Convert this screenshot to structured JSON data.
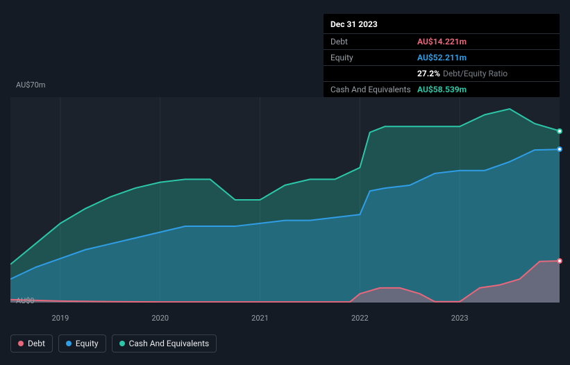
{
  "tooltip": {
    "date": "Dec 31 2023",
    "rows": [
      {
        "label": "Debt",
        "value": "AU$14.221m",
        "color": "#e8677b",
        "extra": null
      },
      {
        "label": "Equity",
        "value": "AU$52.211m",
        "color": "#2f9ee6",
        "extra": null
      },
      {
        "label": "",
        "value": "27.2%",
        "color": "#ffffff",
        "extra": "Debt/Equity Ratio"
      },
      {
        "label": "Cash And Equivalents",
        "value": "AU$58.539m",
        "color": "#2bc7a8",
        "extra": null
      }
    ]
  },
  "chart": {
    "type": "area",
    "background_color": "#1b222c",
    "page_background": "#151b24",
    "grid_color": "#2a2f36",
    "text_color": "#9aa0a6",
    "label_fontsize": 11,
    "y_axis": {
      "min": 0,
      "max": 70,
      "labels": [
        {
          "text": "AU$70m",
          "value": 70
        },
        {
          "text": "AU$0",
          "value": 0
        }
      ]
    },
    "x_axis": {
      "min": 2018.5,
      "max": 2024.0,
      "ticks": [
        2019,
        2020,
        2021,
        2022,
        2023
      ],
      "tick_labels": [
        "2019",
        "2020",
        "2021",
        "2022",
        "2023"
      ]
    },
    "series": [
      {
        "name": "Cash And Equivalents",
        "color": "#2bc7a8",
        "fill_opacity": 0.3,
        "line_width": 2,
        "end_marker": true,
        "data": [
          [
            2018.5,
            13
          ],
          [
            2018.75,
            20
          ],
          [
            2019.0,
            27
          ],
          [
            2019.25,
            32
          ],
          [
            2019.5,
            36
          ],
          [
            2019.75,
            39
          ],
          [
            2020.0,
            41
          ],
          [
            2020.25,
            42
          ],
          [
            2020.5,
            42
          ],
          [
            2020.75,
            35
          ],
          [
            2021.0,
            35
          ],
          [
            2021.25,
            40
          ],
          [
            2021.5,
            42
          ],
          [
            2021.75,
            42
          ],
          [
            2022.0,
            46
          ],
          [
            2022.1,
            58
          ],
          [
            2022.25,
            60
          ],
          [
            2022.5,
            60
          ],
          [
            2022.75,
            60
          ],
          [
            2023.0,
            60
          ],
          [
            2023.25,
            64
          ],
          [
            2023.5,
            66
          ],
          [
            2023.75,
            61
          ],
          [
            2024.0,
            58.5
          ]
        ]
      },
      {
        "name": "Equity",
        "color": "#2f9ee6",
        "fill_opacity": 0.3,
        "line_width": 2,
        "end_marker": true,
        "data": [
          [
            2018.5,
            8
          ],
          [
            2018.75,
            12
          ],
          [
            2019.0,
            15
          ],
          [
            2019.25,
            18
          ],
          [
            2019.5,
            20
          ],
          [
            2019.75,
            22
          ],
          [
            2020.0,
            24
          ],
          [
            2020.25,
            26
          ],
          [
            2020.5,
            26
          ],
          [
            2020.75,
            26
          ],
          [
            2021.0,
            27
          ],
          [
            2021.25,
            28
          ],
          [
            2021.5,
            28
          ],
          [
            2021.75,
            29
          ],
          [
            2022.0,
            30
          ],
          [
            2022.1,
            38
          ],
          [
            2022.25,
            39
          ],
          [
            2022.5,
            40
          ],
          [
            2022.75,
            44
          ],
          [
            2023.0,
            45
          ],
          [
            2023.25,
            45
          ],
          [
            2023.5,
            48
          ],
          [
            2023.75,
            52
          ],
          [
            2024.0,
            52.2
          ]
        ]
      },
      {
        "name": "Debt",
        "color": "#e8677b",
        "fill_opacity": 0.35,
        "line_width": 2,
        "end_marker": true,
        "data": [
          [
            2018.5,
            1
          ],
          [
            2019.0,
            0.5
          ],
          [
            2019.5,
            0.3
          ],
          [
            2020.0,
            0.2
          ],
          [
            2020.5,
            0.2
          ],
          [
            2021.0,
            0.2
          ],
          [
            2021.5,
            0.2
          ],
          [
            2021.9,
            0.2
          ],
          [
            2022.0,
            3
          ],
          [
            2022.2,
            5
          ],
          [
            2022.4,
            5
          ],
          [
            2022.6,
            3
          ],
          [
            2022.75,
            0.3
          ],
          [
            2023.0,
            0.3
          ],
          [
            2023.2,
            5
          ],
          [
            2023.4,
            6
          ],
          [
            2023.6,
            8
          ],
          [
            2023.8,
            14
          ],
          [
            2024.0,
            14.2
          ]
        ]
      }
    ]
  },
  "legend": {
    "items": [
      {
        "label": "Debt",
        "color": "#e8677b"
      },
      {
        "label": "Equity",
        "color": "#2f9ee6"
      },
      {
        "label": "Cash And Equivalents",
        "color": "#2bc7a8"
      }
    ]
  }
}
